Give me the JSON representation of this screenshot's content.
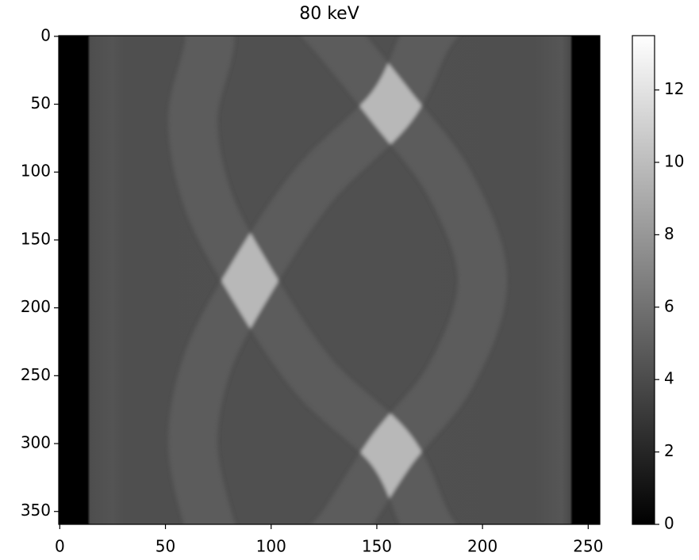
{
  "chart_data": {
    "type": "image",
    "title": "80 keV",
    "cmap": "gray",
    "xlim": [
      -0.5,
      255.5
    ],
    "ylim": [
      359.5,
      -0.5
    ],
    "xticks": [
      0,
      50,
      100,
      150,
      200,
      250
    ],
    "yticks": [
      0,
      50,
      100,
      150,
      200,
      250,
      300,
      350
    ],
    "colorbar": {
      "clim": [
        0,
        13.5
      ],
      "ticks": [
        0,
        2,
        4,
        6,
        8,
        10,
        12
      ]
    }
  }
}
